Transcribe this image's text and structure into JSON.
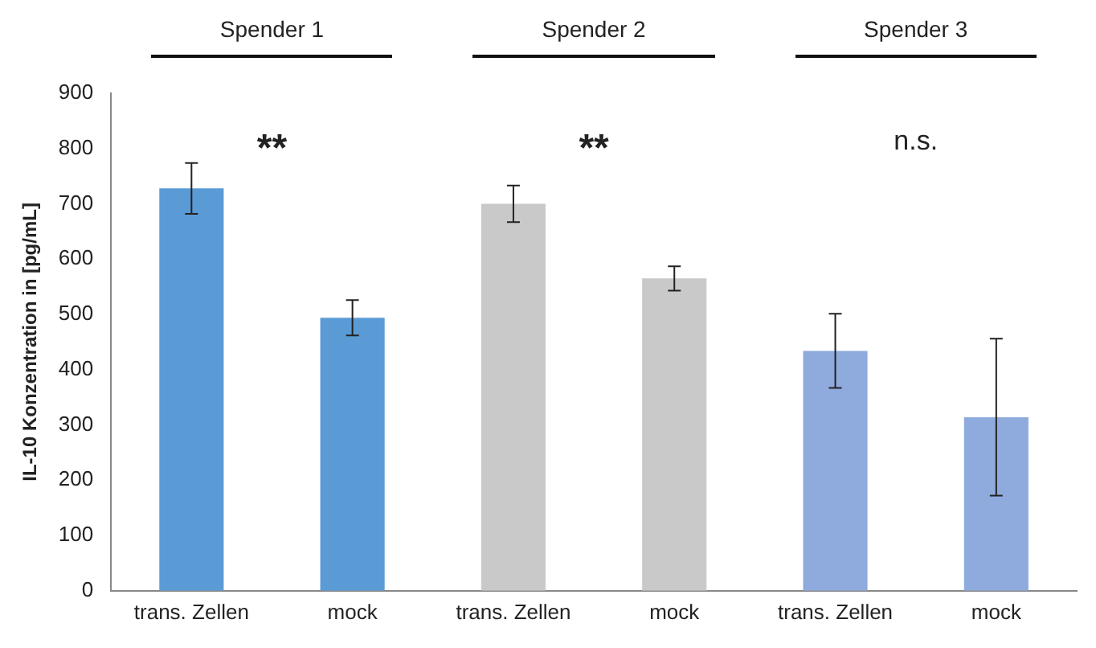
{
  "chart_data": {
    "type": "bar",
    "ylabel": "IL-10 Konzentration in [pg/mL]",
    "categories": [
      "trans. Zellen",
      "mock",
      "trans. Zellen",
      "mock",
      "trans. Zellen",
      "mock"
    ],
    "values": [
      728,
      494,
      700,
      565,
      434,
      314
    ],
    "errors": [
      46,
      32,
      33,
      22,
      67,
      142
    ],
    "colors": [
      "#5b9bd5",
      "#5b9bd5",
      "#c9c9c9",
      "#c9c9c9",
      "#8faadc",
      "#8faadc"
    ],
    "ylim": [
      0,
      900
    ],
    "yticks": [
      0,
      100,
      200,
      300,
      400,
      500,
      600,
      700,
      800,
      900
    ],
    "grid": false,
    "legend": false,
    "annotations": [
      "Spender 1",
      "Spender 2",
      "Spender 3",
      "**",
      "**",
      "n.s."
    ]
  }
}
